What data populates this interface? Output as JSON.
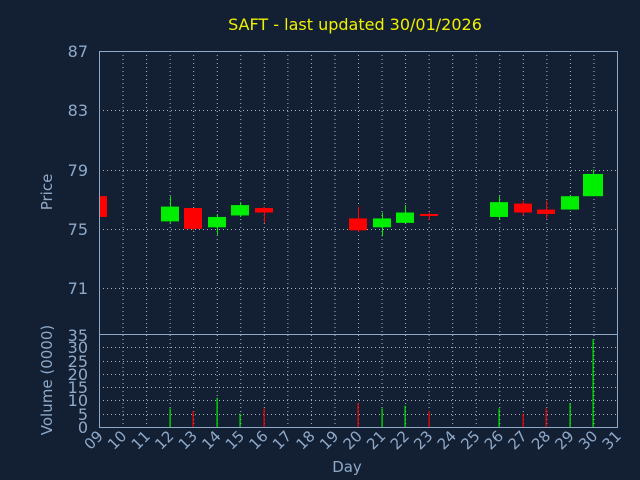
{
  "chart_data": {
    "type": "candlestick",
    "title": "SAFT - last updated 30/01/2026",
    "price_label": "Price",
    "volume_label": "Volume (0000)",
    "xlabel": "Day",
    "x_ticks": [
      "09",
      "10",
      "11",
      "12",
      "13",
      "14",
      "15",
      "16",
      "17",
      "18",
      "19",
      "20",
      "21",
      "22",
      "23",
      "24",
      "25",
      "26",
      "27",
      "28",
      "29",
      "30",
      "31"
    ],
    "price_ticks": [
      87,
      83,
      79,
      75,
      71
    ],
    "price_axis_bottom_label": "35",
    "price_range": [
      67.9,
      87
    ],
    "volume_ticks": [
      30,
      25,
      20,
      15,
      10,
      5,
      0
    ],
    "volume_range": [
      0,
      35
    ],
    "grid": true,
    "candles": [
      {
        "day": 9,
        "open": 77.2,
        "close": 75.8,
        "high": 77.2,
        "low": 75.8,
        "volume": 0
      },
      {
        "day": 12,
        "open": 75.5,
        "close": 76.5,
        "high": 77.2,
        "low": 75.4,
        "volume": 7
      },
      {
        "day": 13,
        "open": 76.4,
        "close": 75.0,
        "high": 76.4,
        "low": 74.9,
        "volume": 6
      },
      {
        "day": 14,
        "open": 75.1,
        "close": 75.8,
        "high": 76.0,
        "low": 74.6,
        "volume": 11
      },
      {
        "day": 15,
        "open": 75.9,
        "close": 76.6,
        "high": 76.8,
        "low": 75.8,
        "volume": 5
      },
      {
        "day": 16,
        "open": 76.4,
        "close": 76.1,
        "high": 76.5,
        "low": 75.4,
        "volume": 7
      },
      {
        "day": 20,
        "open": 75.7,
        "close": 74.9,
        "high": 76.5,
        "low": 74.8,
        "volume": 9
      },
      {
        "day": 21,
        "open": 75.1,
        "close": 75.7,
        "high": 76.1,
        "low": 74.5,
        "volume": 7
      },
      {
        "day": 22,
        "open": 75.4,
        "close": 76.1,
        "high": 76.6,
        "low": 75.4,
        "volume": 8
      },
      {
        "day": 23,
        "open": 76.0,
        "close": 75.9,
        "high": 76.1,
        "low": 75.6,
        "volume": 6
      },
      {
        "day": 26,
        "open": 75.8,
        "close": 76.8,
        "high": 77.2,
        "low": 75.6,
        "volume": 7
      },
      {
        "day": 27,
        "open": 76.7,
        "close": 76.1,
        "high": 76.9,
        "low": 75.9,
        "volume": 5
      },
      {
        "day": 28,
        "open": 76.3,
        "close": 76.0,
        "high": 76.9,
        "low": 75.7,
        "volume": 7
      },
      {
        "day": 29,
        "open": 76.3,
        "close": 77.2,
        "high": 77.2,
        "low": 76.3,
        "volume": 9
      },
      {
        "day": 30,
        "open": 77.2,
        "close": 78.7,
        "high": 79.0,
        "low": 77.2,
        "volume": 33
      }
    ]
  },
  "colors": {
    "background": "#132033",
    "title": "#f0f000",
    "axis_text": "#8fa9c9",
    "grid": "#c8d0dc",
    "up": "#00ee00",
    "down": "#ff0000",
    "frame": "#8fa9c9"
  }
}
